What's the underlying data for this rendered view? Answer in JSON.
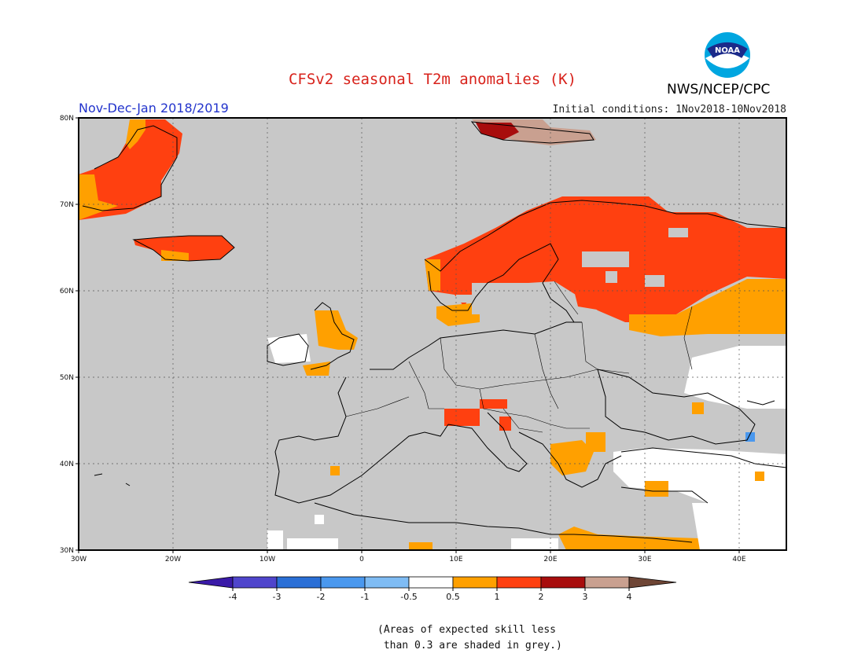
{
  "header": {
    "title": "CFSv2 seasonal T2m anomalies (K)",
    "agency": "NWS/NCEP/CPC",
    "season": "Nov-Dec-Jan 2018/2019",
    "initial_conditions": "Initial conditions: 1Nov2018-10Nov2018",
    "logo_text": "NOAA"
  },
  "map": {
    "lon_range": [
      -30,
      45
    ],
    "lat_range": [
      30,
      80
    ],
    "lon_ticks": [
      "30W",
      "20W",
      "10W",
      "0",
      "10E",
      "20E",
      "30E",
      "40E"
    ],
    "lat_ticks": [
      "30N",
      "40N",
      "50N",
      "60N",
      "70N",
      "80N"
    ],
    "background_color": "#c8c8c8"
  },
  "colorbar": {
    "labels": [
      "-4",
      "-3",
      "-2",
      "-1",
      "-0.5",
      "0.5",
      "1",
      "2",
      "3",
      "4"
    ],
    "colors": [
      "#3a1aa8",
      "#4f45cc",
      "#2a6fd6",
      "#4a98ee",
      "#7fbcf4",
      "#ffffff",
      "#ffa000",
      "#ff4010",
      "#a80d0d",
      "#c9a090",
      "#6e4535"
    ]
  },
  "note": "(Areas of expected skill less\n than 0.3 are shaded in grey.)"
}
